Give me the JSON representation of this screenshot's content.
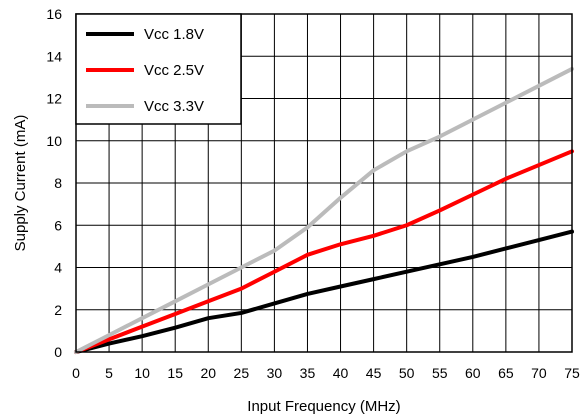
{
  "chart_data": {
    "type": "line",
    "xlabel": "Input Frequency (MHz)",
    "ylabel": "Supply Current (mA)",
    "xlim": [
      0,
      75
    ],
    "ylim": [
      0,
      16
    ],
    "x_ticks": [
      "0",
      "5",
      "10",
      "15",
      "20",
      "25",
      "30",
      "35",
      "40",
      "45",
      "50",
      "55",
      "60",
      "65",
      "70",
      "75"
    ],
    "y_ticks": [
      "0",
      "2",
      "4",
      "6",
      "8",
      "10",
      "12",
      "14",
      "16"
    ],
    "grid": true,
    "legend_position": "top-left",
    "series": [
      {
        "name": "Vcc 1.8V",
        "color": "#000000",
        "x": [
          0,
          5,
          10,
          15,
          20,
          25,
          30,
          35,
          40,
          45,
          50,
          55,
          60,
          65,
          70,
          75
        ],
        "y": [
          0,
          0.4,
          0.75,
          1.15,
          1.6,
          1.85,
          2.3,
          2.75,
          3.1,
          3.45,
          3.8,
          4.15,
          4.5,
          4.9,
          5.3,
          5.7
        ]
      },
      {
        "name": "Vcc 2.5V",
        "color": "#ff0000",
        "x": [
          0,
          5,
          10,
          15,
          20,
          25,
          30,
          35,
          40,
          45,
          50,
          55,
          60,
          65,
          70,
          75
        ],
        "y": [
          0,
          0.6,
          1.2,
          1.8,
          2.4,
          3.0,
          3.8,
          4.6,
          5.1,
          5.5,
          6.0,
          6.7,
          7.45,
          8.2,
          8.85,
          9.5
        ]
      },
      {
        "name": "Vcc 3.3V",
        "color": "#bbbbbb",
        "x": [
          0,
          5,
          10,
          15,
          20,
          25,
          30,
          35,
          40,
          45,
          50,
          55,
          60,
          65,
          70,
          75
        ],
        "y": [
          0,
          0.8,
          1.6,
          2.4,
          3.2,
          4.0,
          4.8,
          5.9,
          7.3,
          8.6,
          9.5,
          10.2,
          11.0,
          11.8,
          12.6,
          13.4
        ]
      }
    ]
  }
}
